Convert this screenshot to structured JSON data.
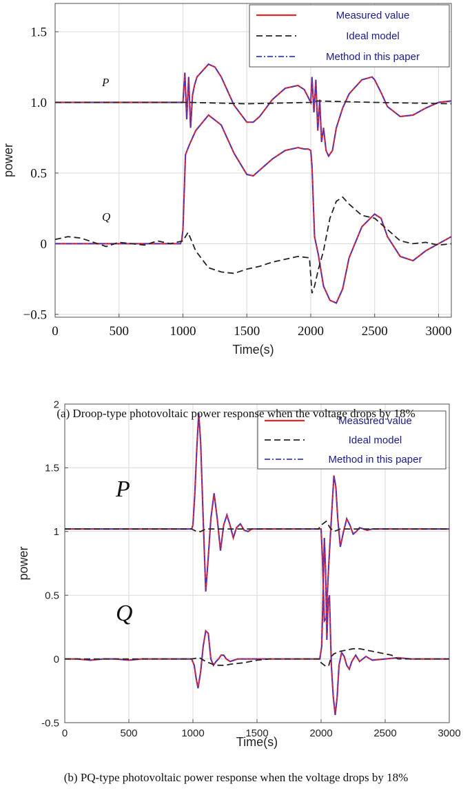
{
  "chart_data": [
    {
      "type": "line",
      "caption": "(a) Droop-type photovoltaic power response when the voltage drops by 18%",
      "xlabel": "Time(s)",
      "ylabel": "power",
      "xlim": [
        0,
        3100
      ],
      "ylim": [
        -0.52,
        1.7
      ],
      "xticks": [
        0,
        500,
        1000,
        1500,
        2000,
        2500,
        3000
      ],
      "yticks": [
        -0.5,
        0,
        0.5,
        1.0,
        1.5
      ],
      "ytick_labels": [
        "−0.5",
        "0",
        "0.5",
        "1.0",
        "1.5"
      ],
      "grid": true,
      "legend_position": "top-right",
      "legend": [
        "Measured value",
        "Ideal model",
        "Method in this paper"
      ],
      "annotations": [
        "P",
        "Q"
      ],
      "colors": {
        "measured": "#e8262a",
        "ideal": "#222222",
        "method": "#3a3acf"
      },
      "series": [
        {
          "name": "Measured value",
          "group": "P",
          "x": [
            0,
            980,
            1000,
            1015,
            1030,
            1045,
            1060,
            1075,
            1090,
            1110,
            1150,
            1200,
            1250,
            1300,
            1400,
            1500,
            1550,
            1600,
            1700,
            1800,
            1900,
            1950,
            2000,
            2010,
            2025,
            2040,
            2055,
            2070,
            2085,
            2100,
            2120,
            2140,
            2170,
            2200,
            2250,
            2300,
            2400,
            2480,
            2500,
            2550,
            2600,
            2700,
            2800,
            2900,
            3000,
            3100
          ],
          "y": [
            1.0,
            1.0,
            1.0,
            1.21,
            0.88,
            1.18,
            0.82,
            1.05,
            1.12,
            1.18,
            1.22,
            1.27,
            1.25,
            1.18,
            0.98,
            0.86,
            0.86,
            0.9,
            1.02,
            1.1,
            1.12,
            1.09,
            1.0,
            1.18,
            0.93,
            1.16,
            0.8,
            1.02,
            0.72,
            0.82,
            0.66,
            0.62,
            0.66,
            0.82,
            0.96,
            1.06,
            1.16,
            1.18,
            1.16,
            1.07,
            0.97,
            0.9,
            0.91,
            0.96,
            1.0,
            1.01
          ]
        },
        {
          "name": "Measured value",
          "group": "Q",
          "x": [
            0,
            980,
            990,
            1000,
            1020,
            1050,
            1100,
            1200,
            1300,
            1400,
            1500,
            1550,
            1600,
            1700,
            1800,
            1900,
            1950,
            1980,
            2000,
            2010,
            2030,
            2060,
            2100,
            2150,
            2200,
            2250,
            2300,
            2400,
            2500,
            2550,
            2600,
            2700,
            2800,
            2900,
            3000,
            3100
          ],
          "y": [
            0.0,
            0.0,
            0.02,
            0.1,
            0.63,
            0.7,
            0.8,
            0.91,
            0.84,
            0.64,
            0.49,
            0.48,
            0.52,
            0.6,
            0.66,
            0.68,
            0.67,
            0.67,
            0.66,
            0.55,
            0.05,
            -0.08,
            -0.3,
            -0.4,
            -0.42,
            -0.32,
            -0.1,
            0.12,
            0.21,
            0.18,
            0.05,
            -0.09,
            -0.12,
            -0.05,
            0.0,
            0.05
          ]
        },
        {
          "name": "Ideal model",
          "group": "P",
          "x": [
            0,
            1000,
            1050,
            1500,
            2000,
            2050,
            2500,
            3100
          ],
          "y": [
            1.0,
            1.0,
            1.0,
            0.99,
            1.0,
            1.01,
            1.0,
            0.99
          ]
        },
        {
          "name": "Ideal model",
          "group": "Q",
          "x": [
            0,
            100,
            200,
            300,
            400,
            500,
            600,
            700,
            800,
            900,
            1000,
            1040,
            1100,
            1200,
            1300,
            1400,
            1500,
            1600,
            1700,
            1800,
            1900,
            1990,
            2010,
            2030,
            2060,
            2100,
            2150,
            2200,
            2250,
            2300,
            2350,
            2400,
            2500,
            2600,
            2700,
            2800,
            2900,
            3000,
            3100
          ],
          "y": [
            0.03,
            0.05,
            0.04,
            0.01,
            -0.02,
            0.01,
            0.0,
            -0.01,
            0.02,
            0.0,
            0.02,
            0.08,
            -0.05,
            -0.17,
            -0.2,
            -0.21,
            -0.18,
            -0.16,
            -0.13,
            -0.11,
            -0.09,
            -0.1,
            -0.35,
            -0.3,
            -0.18,
            -0.05,
            0.18,
            0.3,
            0.33,
            0.28,
            0.24,
            0.2,
            0.18,
            0.1,
            0.02,
            0.0,
            0.01,
            -0.01,
            0.0
          ]
        }
      ]
    },
    {
      "type": "line",
      "caption": "(b) PQ-type photovoltaic power response when the voltage drops by 18%",
      "xlabel": "Time(s)",
      "ylabel": "power",
      "xlim": [
        0,
        3000
      ],
      "ylim": [
        -0.5,
        2.0
      ],
      "xticks": [
        0,
        500,
        1000,
        1500,
        2000,
        2500,
        3000
      ],
      "yticks": [
        -0.5,
        0,
        0.5,
        1,
        1.5,
        2
      ],
      "ytick_labels": [
        "-0.5",
        "0",
        "0.5",
        "1",
        "1.5",
        "2"
      ],
      "grid": true,
      "legend_position": "top-right",
      "legend": [
        "Measured value",
        "Ideal model",
        "Method in this paper"
      ],
      "annotations": [
        "P",
        "Q"
      ],
      "colors": {
        "measured": "#e8262a",
        "ideal": "#222222",
        "method": "#3a3acf"
      },
      "series": [
        {
          "name": "Measured value",
          "group": "P",
          "x": [
            0,
            990,
            1000,
            1015,
            1030,
            1045,
            1060,
            1080,
            1100,
            1120,
            1140,
            1165,
            1190,
            1215,
            1240,
            1265,
            1290,
            1315,
            1340,
            1370,
            1400,
            1430,
            1460,
            1500,
            2000,
            2010,
            2025,
            2040,
            2060,
            2080,
            2100,
            2115,
            2130,
            2150,
            2175,
            2200,
            2225,
            2250,
            2275,
            2300,
            2330,
            2360,
            2400,
            3000
          ],
          "y": [
            1.02,
            1.02,
            1.05,
            1.3,
            1.65,
            1.93,
            1.7,
            1.1,
            0.53,
            0.8,
            1.1,
            1.3,
            1.1,
            0.85,
            1.05,
            1.13,
            1.05,
            0.95,
            1.03,
            1.06,
            1.01,
            1.0,
            1.02,
            1.02,
            1.02,
            0.8,
            0.3,
            0.32,
            0.75,
            1.1,
            1.44,
            1.35,
            1.1,
            0.88,
            1.0,
            1.1,
            1.05,
            0.98,
            1.0,
            1.03,
            1.02,
            1.01,
            1.02,
            1.02
          ]
        },
        {
          "name": "Measured value",
          "group": "Q",
          "x": [
            0,
            100,
            200,
            300,
            400,
            500,
            600,
            700,
            800,
            900,
            990,
            1010,
            1025,
            1040,
            1060,
            1080,
            1100,
            1120,
            1140,
            1160,
            1180,
            1200,
            1220,
            1240,
            1260,
            1290,
            1320,
            1350,
            1400,
            1500,
            1990,
            2005,
            2015,
            2025,
            2035,
            2045,
            2055,
            2065,
            2080,
            2095,
            2110,
            2125,
            2140,
            2160,
            2180,
            2200,
            2220,
            2240,
            2270,
            2300,
            2350,
            2400,
            2500,
            2600,
            2700,
            3000
          ],
          "y": [
            0.0,
            0.0,
            -0.01,
            0.0,
            0.0,
            -0.01,
            0.0,
            0.0,
            0.0,
            0.0,
            0.0,
            -0.05,
            -0.15,
            -0.23,
            -0.1,
            0.1,
            0.22,
            0.2,
            0.0,
            -0.05,
            -0.02,
            0.0,
            0.03,
            0.03,
            0.0,
            -0.02,
            -0.01,
            0.0,
            0.0,
            0.0,
            0.0,
            0.1,
            0.5,
            0.95,
            0.7,
            0.15,
            0.45,
            0.5,
            -0.05,
            -0.3,
            -0.44,
            -0.3,
            -0.05,
            0.05,
            0.02,
            -0.05,
            -0.08,
            -0.02,
            0.03,
            -0.02,
            0.02,
            -0.01,
            0.0,
            0.01,
            0.0,
            0.0
          ]
        },
        {
          "name": "Ideal model",
          "group": "P",
          "x": [
            0,
            990,
            1030,
            1060,
            1100,
            1500,
            1980,
            2000,
            2040,
            2070,
            2100,
            2150,
            3000
          ],
          "y": [
            1.02,
            1.02,
            1.0,
            1.0,
            1.02,
            1.02,
            1.02,
            1.05,
            1.08,
            1.03,
            1.0,
            1.02,
            1.02
          ]
        },
        {
          "name": "Ideal model",
          "group": "Q",
          "x": [
            0,
            990,
            1050,
            1100,
            1150,
            1200,
            1250,
            1300,
            1400,
            1500,
            1600,
            1800,
            1990,
            2000,
            2040,
            2060,
            2080,
            2100,
            2150,
            2200,
            2250,
            2300,
            2350,
            2400,
            2450,
            2500,
            2550,
            2600,
            2700,
            3000
          ],
          "y": [
            0.0,
            0.0,
            0.01,
            -0.02,
            -0.04,
            -0.05,
            -0.05,
            -0.04,
            -0.03,
            -0.01,
            0.0,
            0.0,
            0.0,
            -0.03,
            -0.06,
            -0.05,
            0.02,
            0.04,
            0.06,
            0.07,
            0.08,
            0.08,
            0.07,
            0.06,
            0.05,
            0.04,
            0.03,
            0.0,
            0.0,
            0.0
          ]
        }
      ]
    }
  ]
}
